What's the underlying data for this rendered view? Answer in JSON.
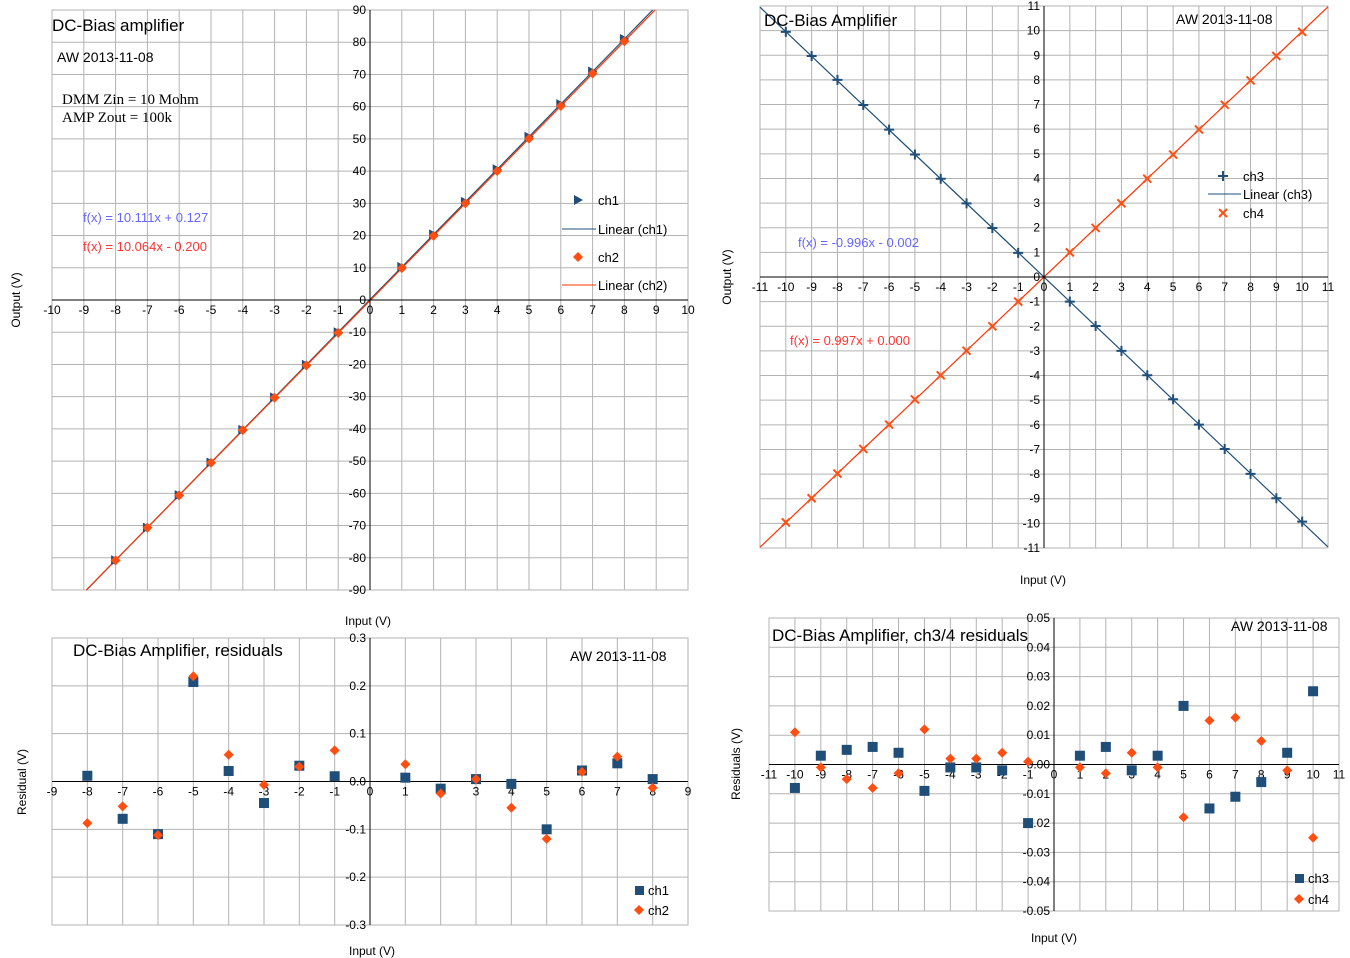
{
  "chart_data": [
    {
      "id": "c1",
      "type": "scatter",
      "title": "DC-Bias amplifier",
      "subtitle": "AW 2013-11-08",
      "notes": [
        "DMM Zin = 10 Mohm",
        "AMP Zout = 100k"
      ],
      "xlabel": "Input (V)",
      "ylabel": "Output (V)",
      "xlim": [
        -10,
        10
      ],
      "ylim": [
        -90,
        90
      ],
      "grid": true,
      "equations": [
        {
          "text": "f(x) = 10.111x + 0.127",
          "color": "#6666ff"
        },
        {
          "text": "f(x) = 10.064x - 0.200",
          "color": "#ff3333"
        }
      ],
      "legend": [
        "ch1",
        "Linear (ch1)",
        "ch2",
        "Linear (ch2)"
      ],
      "x": [
        -8,
        -7,
        -6,
        -5,
        -4,
        -3,
        -2,
        -1,
        1,
        2,
        3,
        4,
        5,
        6,
        7,
        8
      ],
      "series": [
        {
          "name": "ch1",
          "marker": "triangle",
          "color": "#1f4e79",
          "values": [
            -80.76,
            -70.65,
            -60.54,
            -50.43,
            -40.32,
            -30.21,
            -20.1,
            -9.99,
            10.24,
            20.35,
            30.46,
            40.57,
            50.68,
            60.79,
            70.9,
            81.01
          ]
        },
        {
          "name": "ch2",
          "marker": "diamond",
          "color": "#ff4e12",
          "values": [
            -80.8,
            -70.7,
            -60.65,
            -50.5,
            -40.4,
            -30.35,
            -20.3,
            -10.2,
            9.9,
            19.9,
            30.0,
            40.05,
            50.1,
            60.2,
            70.3,
            80.3
          ]
        }
      ],
      "fits": [
        {
          "name": "Linear (ch1)",
          "slope": 10.111,
          "intercept": 0.127,
          "color": "#1f4e79"
        },
        {
          "name": "Linear (ch2)",
          "slope": 10.064,
          "intercept": -0.2,
          "color": "#ff3300"
        }
      ]
    },
    {
      "id": "c2",
      "type": "scatter",
      "title": "DC-Bias Amplifier",
      "subtitle": "AW 2013-11-08",
      "xlabel": "Input (V)",
      "ylabel": "Output (V)",
      "xlim": [
        -11,
        11
      ],
      "ylim": [
        -11,
        11
      ],
      "grid": true,
      "equations": [
        {
          "text": "f(x) = -0.996x - 0.002",
          "color": "#6666ff"
        },
        {
          "text": "f(x) = 0.997x + 0.000",
          "color": "#ff3333"
        }
      ],
      "legend": [
        "ch3",
        "Linear (ch3)",
        "ch4"
      ],
      "x": [
        -10,
        -9,
        -8,
        -7,
        -6,
        -5,
        -4,
        -3,
        -2,
        -1,
        1,
        2,
        3,
        4,
        5,
        6,
        7,
        8,
        9,
        10
      ],
      "series": [
        {
          "name": "ch3",
          "marker": "plus",
          "color": "#1f4e79",
          "values": [
            9.95,
            8.97,
            8.0,
            6.98,
            5.98,
            4.97,
            3.99,
            2.99,
            1.99,
            0.98,
            -1.0,
            -1.99,
            -3.0,
            -3.99,
            -4.96,
            -5.99,
            -6.98,
            -7.99,
            -8.98,
            -9.93
          ]
        },
        {
          "name": "ch4",
          "marker": "x",
          "color": "#ff4e12",
          "values": [
            -9.96,
            -8.98,
            -7.98,
            -6.98,
            -5.99,
            -4.97,
            -3.99,
            -2.99,
            -2.0,
            -1.0,
            1.0,
            1.99,
            2.99,
            3.99,
            4.97,
            5.99,
            6.99,
            7.98,
            8.97,
            9.95
          ]
        }
      ],
      "fits": [
        {
          "name": "Linear (ch3)",
          "slope": -0.996,
          "intercept": -0.002,
          "color": "#1f4e79"
        },
        {
          "name": "",
          "slope": 0.997,
          "intercept": 0.0,
          "color": "#ff3300"
        }
      ]
    },
    {
      "id": "c3",
      "type": "scatter",
      "title": "DC-Bias Amplifier, residuals",
      "subtitle": "AW 2013-11-08",
      "xlabel": "Input (V)",
      "ylabel": "Residual (V)",
      "xlim": [
        -9,
        9
      ],
      "ylim": [
        -0.3,
        0.3
      ],
      "grid": true,
      "legend": [
        "ch1",
        "ch2"
      ],
      "x": [
        -8,
        -7,
        -6,
        -5,
        -4,
        -3,
        -2,
        -1,
        1,
        2,
        3,
        4,
        5,
        6,
        7,
        8
      ],
      "series": [
        {
          "name": "ch1",
          "marker": "square",
          "color": "#1f4e79",
          "values": [
            0.012,
            -0.078,
            -0.11,
            0.208,
            0.022,
            -0.045,
            0.033,
            0.011,
            0.008,
            -0.015,
            0.005,
            -0.005,
            -0.1,
            0.023,
            0.038,
            0.005
          ]
        },
        {
          "name": "ch2",
          "marker": "diamond",
          "color": "#ff4e12",
          "values": [
            -0.087,
            -0.052,
            -0.112,
            0.22,
            0.056,
            -0.007,
            0.031,
            0.065,
            0.036,
            -0.025,
            0.005,
            -0.055,
            -0.12,
            0.02,
            0.052,
            -0.013
          ]
        }
      ]
    },
    {
      "id": "c4",
      "type": "scatter",
      "title": "DC-Bias Amplifier, ch3/4 residuals",
      "subtitle": "AW 2013-11-08",
      "xlabel": "Input (V)",
      "ylabel": "Residuals (V)",
      "xlim": [
        -11,
        11
      ],
      "ylim": [
        -0.05,
        0.05
      ],
      "grid": true,
      "legend": [
        "ch3",
        "ch4"
      ],
      "x": [
        -10,
        -9,
        -8,
        -7,
        -6,
        -5,
        -4,
        -3,
        -2,
        -1,
        1,
        2,
        3,
        4,
        5,
        6,
        7,
        8,
        9,
        10
      ],
      "series": [
        {
          "name": "ch3",
          "marker": "square",
          "color": "#1f4e79",
          "values": [
            -0.008,
            0.003,
            0.005,
            0.006,
            0.004,
            -0.009,
            -0.001,
            -0.001,
            -0.002,
            -0.02,
            0.003,
            0.006,
            -0.002,
            0.003,
            0.02,
            -0.015,
            -0.011,
            -0.006,
            0.004,
            0.025
          ]
        },
        {
          "name": "ch4",
          "marker": "diamond",
          "color": "#ff4e12",
          "values": [
            0.011,
            -0.001,
            -0.005,
            -0.008,
            -0.003,
            0.012,
            0.002,
            0.002,
            0.004,
            0.001,
            -0.001,
            -0.003,
            0.004,
            -0.001,
            -0.018,
            0.015,
            0.016,
            0.008,
            -0.002,
            -0.025
          ]
        }
      ]
    }
  ]
}
